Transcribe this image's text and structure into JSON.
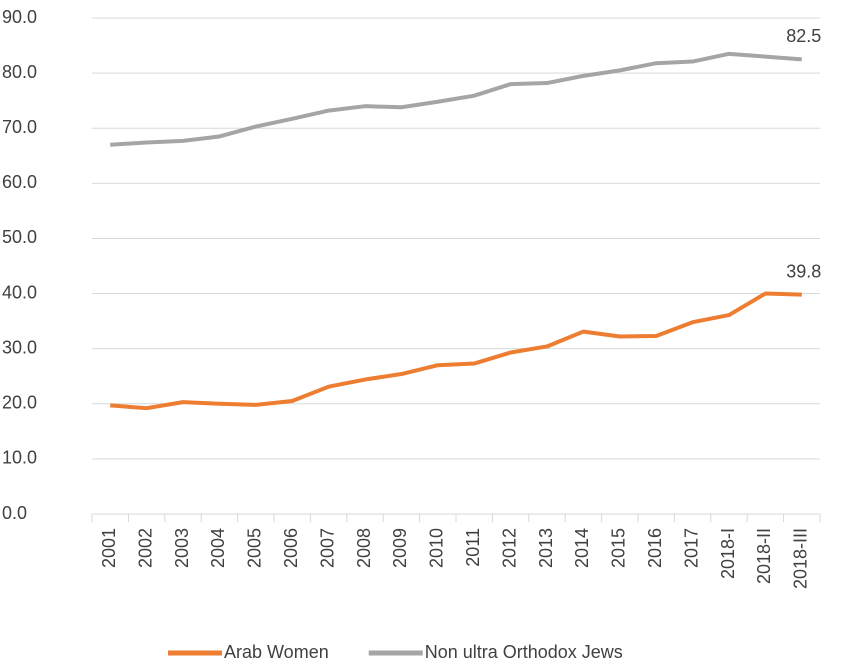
{
  "chart_data": {
    "type": "line",
    "categories": [
      "2001",
      "2002",
      "2003",
      "2004",
      "2005",
      "2006",
      "2007",
      "2008",
      "2009",
      "2010",
      "2011",
      "2012",
      "2013",
      "2014",
      "2015",
      "2016",
      "2017",
      "2018-I",
      "2018-II",
      "2018-III"
    ],
    "series": [
      {
        "name": "Arab Women",
        "color": "#ed7d31",
        "values": [
          19.7,
          19.2,
          20.3,
          20.0,
          19.8,
          20.5,
          23.1,
          24.4,
          25.4,
          27.0,
          27.3,
          29.3,
          30.4,
          33.1,
          32.2,
          32.3,
          34.8,
          36.1,
          40.0,
          39.8
        ]
      },
      {
        "name": "Non ultra Orthodox Jews",
        "color": "#a5a5a5",
        "values": [
          67.0,
          67.4,
          67.7,
          68.5,
          70.3,
          71.7,
          73.2,
          74.0,
          73.8,
          74.8,
          75.9,
          78.0,
          78.2,
          79.5,
          80.5,
          81.8,
          82.1,
          83.5,
          83.0,
          82.5
        ]
      }
    ],
    "ylim": [
      0,
      90
    ],
    "yticks": [
      {
        "value": 0,
        "label": "0.0"
      },
      {
        "value": 10,
        "label": "10.0"
      },
      {
        "value": 20,
        "label": "20.0"
      },
      {
        "value": 30,
        "label": "30.0"
      },
      {
        "value": 40,
        "label": "40.0"
      },
      {
        "value": 50,
        "label": "50.0"
      },
      {
        "value": 60,
        "label": "60.0"
      },
      {
        "value": 70,
        "label": "70.0"
      },
      {
        "value": 80,
        "label": "80.0"
      },
      {
        "value": 90,
        "label": "90.0"
      }
    ],
    "grid": true,
    "legend": "bottom"
  }
}
